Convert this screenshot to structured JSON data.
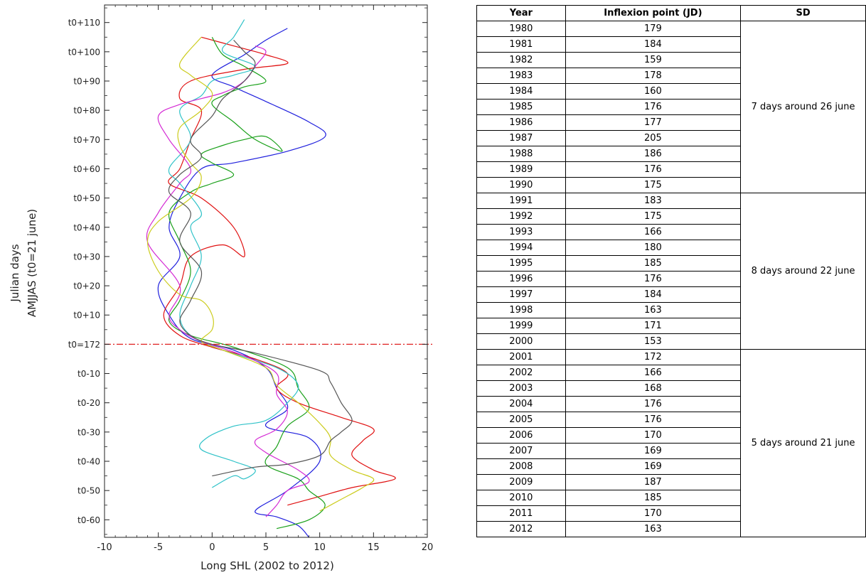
{
  "chart_data": {
    "type": "line",
    "xlabel": "Long SHL (2002 to 2012)",
    "ylabel_line1": "Julian days",
    "ylabel_line2": "AMJJAS (t0=21 june)",
    "xlim": [
      -10,
      20
    ],
    "ylim": [
      -66,
      116
    ],
    "x_ticks": [
      -10,
      -5,
      0,
      5,
      10,
      15,
      20
    ],
    "y_ticks": [
      {
        "value": 110,
        "label": "t0+110"
      },
      {
        "value": 100,
        "label": "t0+100"
      },
      {
        "value": 90,
        "label": "t0+90"
      },
      {
        "value": 80,
        "label": "t0+80"
      },
      {
        "value": 70,
        "label": "t0+70"
      },
      {
        "value": 60,
        "label": "t0+60"
      },
      {
        "value": 50,
        "label": "t0+50"
      },
      {
        "value": 40,
        "label": "t0+40"
      },
      {
        "value": 30,
        "label": "t0+30"
      },
      {
        "value": 20,
        "label": "t0+20"
      },
      {
        "value": 10,
        "label": "t0+10"
      },
      {
        "value": 0,
        "label": "t0=172"
      },
      {
        "value": -10,
        "label": "t0-10"
      },
      {
        "value": -20,
        "label": "t0-20"
      },
      {
        "value": -30,
        "label": "t0-30"
      },
      {
        "value": -40,
        "label": "t0-40"
      },
      {
        "value": -50,
        "label": "t0-50"
      },
      {
        "value": -60,
        "label": "t0-60"
      }
    ],
    "reference_line": {
      "y": 0,
      "color": "#e02020",
      "style": "dash-dot"
    },
    "grid": false,
    "series": [
      {
        "color": "#1f1fdd",
        "points": [
          [
            9,
            -66
          ],
          [
            8,
            -62
          ],
          [
            6,
            -59
          ],
          [
            4,
            -57
          ],
          [
            7,
            -50
          ],
          [
            10,
            -40
          ],
          [
            9,
            -32
          ],
          [
            5,
            -28
          ],
          [
            7,
            -22
          ],
          [
            6,
            -15
          ],
          [
            5,
            -8
          ],
          [
            2,
            -2
          ],
          [
            -2,
            2
          ],
          [
            -4,
            10
          ],
          [
            -5,
            20
          ],
          [
            -3,
            30
          ],
          [
            -4,
            40
          ],
          [
            -3,
            50
          ],
          [
            -1,
            60
          ],
          [
            2,
            62
          ],
          [
            7,
            66
          ],
          [
            10.5,
            71
          ],
          [
            9,
            76
          ],
          [
            5,
            83
          ],
          [
            2,
            88
          ],
          [
            0,
            92
          ],
          [
            3,
            99
          ],
          [
            5,
            104
          ],
          [
            7,
            108
          ]
        ]
      },
      {
        "color": "#e01010",
        "points": [
          [
            7,
            -55
          ],
          [
            10,
            -52
          ],
          [
            13,
            -49
          ],
          [
            17,
            -46
          ],
          [
            15,
            -43
          ],
          [
            13,
            -38
          ],
          [
            14,
            -33
          ],
          [
            15,
            -29
          ],
          [
            12,
            -25
          ],
          [
            8,
            -20
          ],
          [
            6,
            -15
          ],
          [
            7,
            -10
          ],
          [
            4,
            -5
          ],
          [
            0,
            -1
          ],
          [
            -3,
            3
          ],
          [
            -4.5,
            10
          ],
          [
            -3,
            20
          ],
          [
            -2,
            30
          ],
          [
            1,
            34
          ],
          [
            3,
            30
          ],
          [
            2,
            40
          ],
          [
            -1,
            50
          ],
          [
            -4,
            55
          ],
          [
            -3,
            60
          ],
          [
            -2,
            70
          ],
          [
            -1,
            80
          ],
          [
            -3,
            84
          ],
          [
            -2,
            90
          ],
          [
            3,
            94
          ],
          [
            7,
            96
          ],
          [
            5,
            99
          ],
          [
            2,
            102
          ],
          [
            -1,
            105
          ]
        ]
      },
      {
        "color": "#19a019",
        "points": [
          [
            6,
            -63
          ],
          [
            9,
            -60
          ],
          [
            10.5,
            -55
          ],
          [
            9,
            -50
          ],
          [
            8,
            -46
          ],
          [
            5,
            -41
          ],
          [
            6,
            -35
          ],
          [
            7,
            -28
          ],
          [
            9,
            -22
          ],
          [
            8,
            -15
          ],
          [
            7,
            -8
          ],
          [
            2,
            -1
          ],
          [
            -2,
            3
          ],
          [
            -4,
            8
          ],
          [
            -3,
            15
          ],
          [
            -2,
            25
          ],
          [
            -3,
            35
          ],
          [
            -4,
            45
          ],
          [
            -2,
            52
          ],
          [
            0,
            55
          ],
          [
            2,
            58
          ],
          [
            0,
            62
          ],
          [
            -1,
            65
          ],
          [
            1,
            68
          ],
          [
            3,
            70
          ],
          [
            5,
            71
          ],
          [
            6.5,
            66
          ],
          [
            4,
            70
          ],
          [
            2,
            76
          ],
          [
            0,
            82
          ],
          [
            1,
            85
          ],
          [
            3,
            88
          ],
          [
            5,
            90
          ],
          [
            3,
            95
          ],
          [
            1,
            99
          ],
          [
            0,
            105
          ]
        ]
      },
      {
        "color": "#2fc2c8",
        "points": [
          [
            0,
            -49
          ],
          [
            2,
            -45
          ],
          [
            3,
            -46
          ],
          [
            4,
            -43
          ],
          [
            2,
            -40
          ],
          [
            -1,
            -36
          ],
          [
            -0.5,
            -32
          ],
          [
            2,
            -28
          ],
          [
            5,
            -26
          ],
          [
            7,
            -20
          ],
          [
            8,
            -14
          ],
          [
            6,
            -8
          ],
          [
            1,
            -2
          ],
          [
            -2,
            3
          ],
          [
            -3,
            10
          ],
          [
            -2,
            20
          ],
          [
            -1,
            30
          ],
          [
            -2,
            40
          ],
          [
            -1,
            45
          ],
          [
            -3,
            55
          ],
          [
            -4,
            60
          ],
          [
            -2,
            70
          ],
          [
            -3,
            80
          ],
          [
            -1,
            85
          ],
          [
            0,
            90
          ],
          [
            2,
            92
          ],
          [
            4,
            95
          ],
          [
            1,
            100
          ],
          [
            2,
            105
          ],
          [
            3,
            111
          ]
        ]
      },
      {
        "color": "#d42ad4",
        "points": [
          [
            5,
            -59
          ],
          [
            6,
            -55
          ],
          [
            7,
            -50
          ],
          [
            9,
            -47
          ],
          [
            8,
            -43
          ],
          [
            5,
            -37
          ],
          [
            4,
            -33
          ],
          [
            6,
            -29
          ],
          [
            7,
            -23
          ],
          [
            6,
            -17
          ],
          [
            6,
            -10
          ],
          [
            3,
            -4
          ],
          [
            -1,
            1
          ],
          [
            -3,
            5
          ],
          [
            -4,
            10
          ],
          [
            -3,
            20
          ],
          [
            -6,
            35
          ],
          [
            -5,
            45
          ],
          [
            -3,
            55
          ],
          [
            -2,
            60
          ],
          [
            -4,
            70
          ],
          [
            -5,
            78
          ],
          [
            -3,
            82
          ],
          [
            1,
            86
          ],
          [
            3,
            90
          ],
          [
            4,
            95
          ],
          [
            5,
            100
          ],
          [
            4,
            102
          ]
        ]
      },
      {
        "color": "#cccc1e",
        "points": [
          [
            10,
            -57
          ],
          [
            12,
            -53
          ],
          [
            14,
            -49
          ],
          [
            15,
            -46
          ],
          [
            13,
            -43
          ],
          [
            11,
            -38
          ],
          [
            11,
            -32
          ],
          [
            10,
            -27
          ],
          [
            8,
            -20
          ],
          [
            6,
            -14
          ],
          [
            5,
            -8
          ],
          [
            1,
            -2
          ],
          [
            -1,
            1
          ],
          [
            0,
            5
          ],
          [
            0,
            10
          ],
          [
            -1,
            15
          ],
          [
            -3,
            17
          ],
          [
            -5,
            25
          ],
          [
            -6,
            35
          ],
          [
            -5,
            42
          ],
          [
            -2,
            50
          ],
          [
            -1,
            57
          ],
          [
            -2,
            62
          ],
          [
            -3,
            68
          ],
          [
            -3,
            74
          ],
          [
            -1,
            80
          ],
          [
            0,
            86
          ],
          [
            -2,
            92
          ],
          [
            -3,
            96
          ],
          [
            -1,
            105
          ]
        ]
      },
      {
        "color": "#555555",
        "points": [
          [
            0,
            -45
          ],
          [
            4,
            -42
          ],
          [
            7,
            -41
          ],
          [
            10,
            -38
          ],
          [
            11,
            -33
          ],
          [
            12,
            -30
          ],
          [
            13,
            -26
          ],
          [
            12,
            -20
          ],
          [
            11,
            -13
          ],
          [
            10,
            -9
          ],
          [
            4,
            -3
          ],
          [
            0,
            0
          ],
          [
            -2,
            3
          ],
          [
            -3,
            8
          ],
          [
            -2,
            15
          ],
          [
            -1,
            25
          ],
          [
            -3,
            35
          ],
          [
            -2,
            45
          ],
          [
            -4,
            52
          ],
          [
            -3,
            58
          ],
          [
            -1,
            64
          ],
          [
            -2,
            70
          ],
          [
            0,
            78
          ],
          [
            1,
            84
          ],
          [
            3,
            90
          ],
          [
            4,
            96
          ],
          [
            3,
            100
          ],
          [
            2,
            104
          ]
        ]
      }
    ]
  },
  "table": {
    "headers": [
      "Year",
      "Inflexion point (JD)",
      "SD"
    ],
    "rows": [
      {
        "year": "1980",
        "jd": "179"
      },
      {
        "year": "1981",
        "jd": "184"
      },
      {
        "year": "1982",
        "jd": "159"
      },
      {
        "year": "1983",
        "jd": "178"
      },
      {
        "year": "1984",
        "jd": "160"
      },
      {
        "year": "1985",
        "jd": "176"
      },
      {
        "year": "1986",
        "jd": "177"
      },
      {
        "year": "1987",
        "jd": "205"
      },
      {
        "year": "1988",
        "jd": "186"
      },
      {
        "year": "1989",
        "jd": "176"
      },
      {
        "year": "1990",
        "jd": "175"
      },
      {
        "year": "1991",
        "jd": "183"
      },
      {
        "year": "1992",
        "jd": "175"
      },
      {
        "year": "1993",
        "jd": "166"
      },
      {
        "year": "1994",
        "jd": "180"
      },
      {
        "year": "1995",
        "jd": "185"
      },
      {
        "year": "1996",
        "jd": "176"
      },
      {
        "year": "1997",
        "jd": "184"
      },
      {
        "year": "1998",
        "jd": "163"
      },
      {
        "year": "1999",
        "jd": "171"
      },
      {
        "year": "2000",
        "jd": "153"
      },
      {
        "year": "2001",
        "jd": "172"
      },
      {
        "year": "2002",
        "jd": "166"
      },
      {
        "year": "2003",
        "jd": "168"
      },
      {
        "year": "2004",
        "jd": "176"
      },
      {
        "year": "2005",
        "jd": "176"
      },
      {
        "year": "2006",
        "jd": "170"
      },
      {
        "year": "2007",
        "jd": "169"
      },
      {
        "year": "2008",
        "jd": "169"
      },
      {
        "year": "2009",
        "jd": "187"
      },
      {
        "year": "2010",
        "jd": "185"
      },
      {
        "year": "2011",
        "jd": "170"
      },
      {
        "year": "2012",
        "jd": "163"
      }
    ],
    "sd_groups": [
      {
        "label": "7 days around 26 june",
        "rows": 11
      },
      {
        "label": "8 days around 22 june",
        "rows": 10
      },
      {
        "label": "5 days around 21 june",
        "rows": 12
      }
    ]
  }
}
